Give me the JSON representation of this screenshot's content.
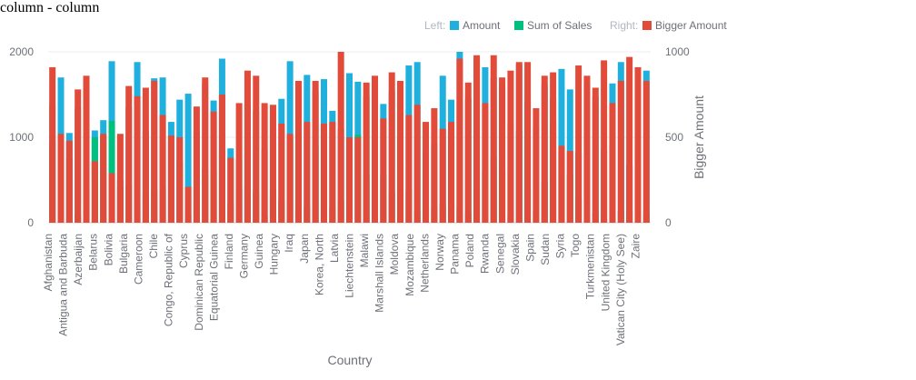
{
  "title": "column - column",
  "legend": {
    "left_label": "Left:",
    "right_label": "Right:",
    "items": [
      {
        "name": "Amount",
        "color": "#1fb0de"
      },
      {
        "name": "Sum of Sales",
        "color": "#00c080"
      },
      {
        "name": "Bigger Amount",
        "color": "#e24a39"
      }
    ]
  },
  "chart_data": {
    "type": "bar",
    "xlabel": "Country",
    "ylabel_left": "",
    "ylabel_right": "Bigger Amount",
    "ylim_left": [
      0,
      2000
    ],
    "ylim_right": [
      0,
      1000
    ],
    "yticks_left": [
      "0",
      "1000",
      "2000"
    ],
    "yticks_right": [
      "0",
      "500",
      "1000"
    ],
    "grid": true,
    "legend_position": "top-right",
    "x_tick_labels": [
      "Afghanistan",
      "Antigua and Barbuda",
      "Azerbaijan",
      "Belarus",
      "Bolivia",
      "Bulgaria",
      "Cameroon",
      "Chile",
      "Congo, Republic of",
      "Cyprus",
      "Dominican Republic",
      "Equatorial Guinea",
      "Finland",
      "Germany",
      "Guinea",
      "Hungary",
      "Iraq",
      "Japan",
      "Korea, North",
      "Latvia",
      "Liechtenstein",
      "Malawi",
      "Marshall Islands",
      "Moldova",
      "Mozambique",
      "Netherlands",
      "Norway",
      "Panama",
      "Poland",
      "Rwanda",
      "Senegal",
      "Slovakia",
      "Spain",
      "Sudan",
      "Syria",
      "Togo",
      "Turkmenistan",
      "United Kingdom",
      "Vatican City (Holy See)",
      "Zaire"
    ],
    "series": [
      {
        "name": "Amount",
        "axis": "left",
        "values": [
          1380,
          1700,
          1050,
          1340,
          1650,
          1080,
          1200,
          1890,
          500,
          1350,
          1880,
          330,
          1690,
          1700,
          1180,
          1440,
          1510,
          1080,
          1620,
          1430,
          1920,
          870,
          400,
          1390,
          1310,
          850,
          310,
          1450,
          1890,
          1100,
          1730,
          1540,
          1680,
          1310,
          1100,
          1750,
          1650,
          1480,
          850,
          1390,
          1540,
          1010,
          1840,
          1880,
          870,
          920,
          1720,
          1440,
          2000,
          1450,
          1920,
          1820,
          1700,
          1640,
          1150,
          1850,
          1420,
          1130,
          1620,
          1450,
          1800,
          1560,
          810,
          1630,
          1480,
          850,
          1630,
          1880,
          680,
          1330,
          1780
        ]
      },
      {
        "name": "Sum of Sales",
        "axis": "left",
        "values": [
          950,
          180,
          750,
          90,
          460,
          1000,
          1010,
          1190,
          410,
          430,
          160,
          1070,
          380,
          420,
          20,
          720,
          100,
          240,
          630,
          610,
          830,
          210,
          740,
          430,
          360,
          70,
          400,
          260,
          1000,
          120,
          190,
          900,
          580,
          170,
          260,
          270,
          1030,
          560,
          630,
          550,
          360,
          680,
          380,
          140,
          180,
          170,
          210,
          950,
          170,
          120,
          390,
          610,
          760,
          630,
          80,
          1080,
          400,
          140,
          480,
          1180,
          830,
          570,
          280,
          30,
          120,
          40,
          910,
          140,
          130,
          880,
          110
        ]
      }
    ],
    "bigger_amount_series": {
      "name": "Bigger Amount",
      "axis": "right",
      "values": [
        910,
        520,
        480,
        780,
        860,
        360,
        520,
        290,
        520,
        800,
        740,
        790,
        830,
        630,
        510,
        500,
        210,
        680,
        850,
        650,
        750,
        380,
        700,
        890,
        860,
        700,
        690,
        580,
        520,
        830,
        590,
        830,
        580,
        590,
        1000,
        500,
        500,
        820,
        860,
        610,
        880,
        830,
        630,
        690,
        590,
        670,
        550,
        590,
        960,
        820,
        980,
        700,
        980,
        850,
        890,
        940,
        940,
        670,
        860,
        880,
        450,
        420,
        920,
        860,
        790,
        950,
        700,
        830,
        970,
        910,
        830
      ]
    }
  }
}
